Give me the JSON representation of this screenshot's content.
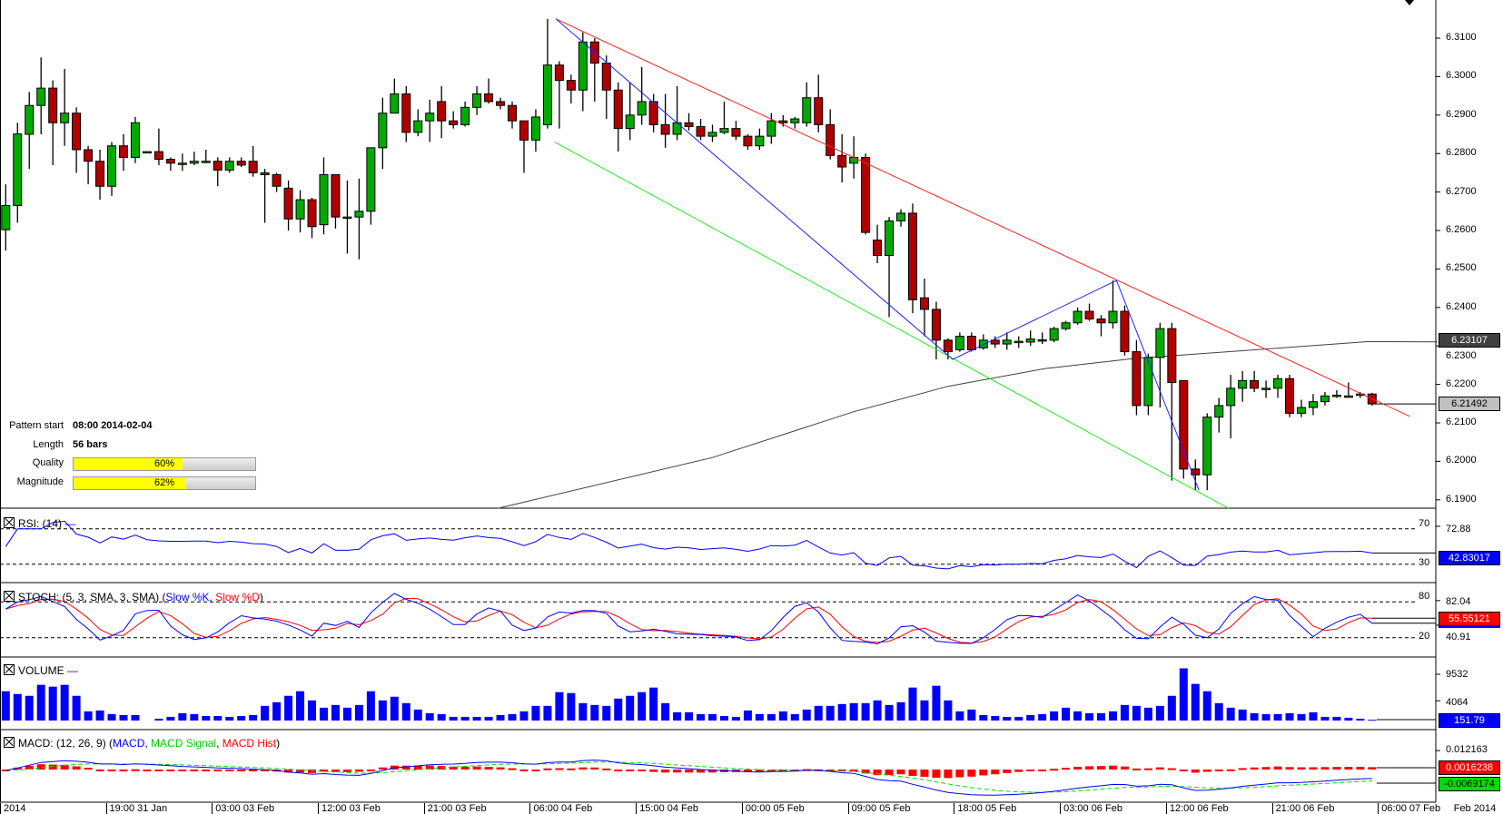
{
  "pattern_info": {
    "pattern_start_label": "Pattern start",
    "pattern_start_value": "08:00 2014-02-04",
    "length_label": "Length",
    "length_value": "56 bars",
    "quality_label": "Quality",
    "quality_value": "60%",
    "quality_fraction": 0.6,
    "magnitude_label": "Magnitude",
    "magnitude_value": "62%",
    "magnitude_fraction": 0.62
  },
  "panels": {
    "rsi": {
      "title": "RSI: (14)",
      "levels": [
        "70",
        "30"
      ],
      "ticks": [
        "72.88"
      ],
      "current": "42.83017"
    },
    "stoch": {
      "title_prefix": "STOCH: (5, 3, SMA, 3, SMA) (",
      "k_label": "Slow %K",
      "sep": ", ",
      "d_label": "Slow %D",
      "title_suffix": ")",
      "levels": [
        "80",
        "20"
      ],
      "ticks": [
        "82.04",
        "40.91"
      ],
      "current": "55.55121"
    },
    "volume": {
      "title": "VOLUME",
      "ticks": [
        "9532",
        "4064"
      ],
      "current": "151.79"
    },
    "macd": {
      "title_prefix": "MACD: (12, 26, 9) (",
      "macd_label": "MACD",
      "sep1": ", ",
      "signal_label": "MACD Signal",
      "sep2": ", ",
      "hist_label": "MACD Hist",
      "title_suffix": ")",
      "ticks": [
        "0.012163"
      ],
      "current_hist": "0.0016238",
      "current_signal": "-0.0069174"
    }
  },
  "price_axis": {
    "ticks": [
      "6.3100",
      "6.3000",
      "6.2900",
      "6.2800",
      "6.2700",
      "6.2600",
      "6.2500",
      "6.2400",
      "6.2300",
      "6.2200",
      "6.2100",
      "6.2000",
      "6.1900"
    ],
    "ma_value": "6.23107",
    "last_value": "6.21492"
  },
  "time_axis": {
    "labels": [
      "2014",
      "19:00 31 Jan",
      "03:00 03 Feb",
      "12:00 03 Feb",
      "21:00 03 Feb",
      "06:00 04 Feb",
      "15:00 04 Feb",
      "00:00 05 Feb",
      "09:00 05 Feb",
      "18:00 05 Feb",
      "03:00 06 Feb",
      "12:00 06 Feb",
      "21:00 06 Feb",
      "06:00 07 Feb",
      "Feb 2014"
    ],
    "bar_index": [
      -0.5,
      8.5,
      17.5,
      26.5,
      35.5,
      44.5,
      53.5,
      62.5,
      71.5,
      80.5,
      89.5,
      98.5,
      107.5,
      116.5,
      122.7
    ]
  },
  "colors": {
    "up": "#00aa00",
    "down": "#b00000",
    "trend_upper": "#ff2020",
    "trend_lower": "#22ee22",
    "zigzag": "#2222ff",
    "ma": "#404040",
    "rsi": "#0000ff",
    "stoch_k": "#0000ff",
    "stoch_d": "#ff0000",
    "volume": "#0000ff",
    "macd": "#0000ff",
    "signal": "#00dd00",
    "hist": "#ff0000",
    "quality_fill": "#ffff00"
  },
  "chart_data": {
    "type": "candlestick",
    "title": "",
    "ylim": [
      6.187,
      6.319
    ],
    "candles_ohlc": [
      [
        6.2602,
        6.272,
        6.2548,
        6.2665
      ],
      [
        6.2665,
        6.288,
        6.262,
        6.2851
      ],
      [
        6.285,
        6.296,
        6.276,
        6.2925
      ],
      [
        6.2925,
        6.305,
        6.285,
        6.297
      ],
      [
        6.297,
        6.299,
        6.277,
        6.288
      ],
      [
        6.288,
        6.302,
        6.282,
        6.2905
      ],
      [
        6.2905,
        6.292,
        6.275,
        6.281
      ],
      [
        6.281,
        6.282,
        6.272,
        6.278
      ],
      [
        6.278,
        6.281,
        6.268,
        6.2715
      ],
      [
        6.2715,
        6.283,
        6.269,
        6.282
      ],
      [
        6.282,
        6.285,
        6.2755,
        6.279
      ],
      [
        6.279,
        6.2895,
        6.2775,
        6.288
      ],
      [
        6.2805,
        6.2805,
        6.2805,
        6.2805
      ],
      [
        6.2805,
        6.2865,
        6.277,
        6.2785
      ],
      [
        6.2785,
        6.279,
        6.2755,
        6.2775
      ],
      [
        6.2775,
        6.28,
        6.2755,
        6.2775
      ],
      [
        6.2775,
        6.2805,
        6.277,
        6.278
      ],
      [
        6.278,
        6.281,
        6.2775,
        6.278
      ],
      [
        6.278,
        6.279,
        6.2715,
        6.2757
      ],
      [
        6.2757,
        6.279,
        6.275,
        6.278
      ],
      [
        6.278,
        6.279,
        6.2765,
        6.277
      ],
      [
        6.278,
        6.282,
        6.274,
        6.275
      ],
      [
        6.275,
        6.276,
        6.262,
        6.2745
      ],
      [
        6.2745,
        6.275,
        6.27,
        6.2715
      ],
      [
        6.271,
        6.273,
        6.26,
        6.263
      ],
      [
        6.263,
        6.2705,
        6.2595,
        6.268
      ],
      [
        6.268,
        6.2685,
        6.258,
        6.261
      ],
      [
        6.2615,
        6.279,
        6.259,
        6.2745
      ],
      [
        6.2745,
        6.2745,
        6.2605,
        6.2635
      ],
      [
        6.2635,
        6.273,
        6.254,
        6.2635
      ],
      [
        6.2635,
        6.2735,
        6.2525,
        6.265
      ],
      [
        6.265,
        6.2815,
        6.2615,
        6.2815
      ],
      [
        6.2815,
        6.2945,
        6.276,
        6.2905
      ],
      [
        6.2905,
        6.2995,
        6.2915,
        6.2955
      ],
      [
        6.2955,
        6.2975,
        6.283,
        6.2855
      ],
      [
        6.2855,
        6.2915,
        6.2845,
        6.2885
      ],
      [
        6.2885,
        6.294,
        6.283,
        6.2905
      ],
      [
        6.2935,
        6.2975,
        6.284,
        6.2885
      ],
      [
        6.2885,
        6.291,
        6.2865,
        6.2875
      ],
      [
        6.2875,
        6.2935,
        6.287,
        6.292
      ],
      [
        6.292,
        6.2975,
        6.29,
        6.2955
      ],
      [
        6.2955,
        6.2995,
        6.293,
        6.2935
      ],
      [
        6.2935,
        6.2945,
        6.2915,
        6.2925
      ],
      [
        6.2925,
        6.2935,
        6.2865,
        6.2885
      ],
      [
        6.2885,
        6.287,
        6.275,
        6.2835
      ],
      [
        6.2835,
        6.2915,
        6.2805,
        6.2895
      ],
      [
        6.2875,
        6.315,
        6.2865,
        6.303
      ],
      [
        6.303,
        6.304,
        6.2865,
        6.299
      ],
      [
        6.299,
        6.3005,
        6.293,
        6.2965
      ],
      [
        6.2965,
        6.3115,
        6.291,
        6.309
      ],
      [
        6.309,
        6.31,
        6.2935,
        6.3035
      ],
      [
        6.3035,
        6.3055,
        6.289,
        6.2965
      ],
      [
        6.2965,
        6.2985,
        6.2805,
        6.2865
      ],
      [
        6.2865,
        6.2985,
        6.2835,
        6.29
      ],
      [
        6.29,
        6.3025,
        6.2875,
        6.2935
      ],
      [
        6.2935,
        6.2955,
        6.2855,
        6.2875
      ],
      [
        6.2875,
        6.2955,
        6.2815,
        6.285
      ],
      [
        6.285,
        6.2975,
        6.2835,
        6.288
      ],
      [
        6.288,
        6.2905,
        6.286,
        6.287
      ],
      [
        6.287,
        6.289,
        6.2835,
        6.2845
      ],
      [
        6.2845,
        6.2875,
        6.283,
        6.2855
      ],
      [
        6.2855,
        6.2935,
        6.285,
        6.2865
      ],
      [
        6.2865,
        6.2885,
        6.2835,
        6.2845
      ],
      [
        6.2845,
        6.285,
        6.281,
        6.282
      ],
      [
        6.282,
        6.2865,
        6.281,
        6.2845
      ],
      [
        6.2845,
        6.2905,
        6.2825,
        6.2885
      ],
      [
        6.2885,
        6.29,
        6.287,
        6.288
      ],
      [
        6.288,
        6.2895,
        6.2865,
        6.289
      ],
      [
        6.288,
        6.2985,
        6.287,
        6.2945
      ],
      [
        6.2945,
        6.3005,
        6.2855,
        6.2875
      ],
      [
        6.2875,
        6.2915,
        6.2785,
        6.2795
      ],
      [
        6.2795,
        6.285,
        6.2725,
        6.2765
      ],
      [
        6.2775,
        6.2845,
        6.2735,
        6.279
      ],
      [
        6.279,
        6.28,
        6.259,
        6.2595
      ],
      [
        6.2575,
        6.2615,
        6.2515,
        6.2535
      ],
      [
        6.2535,
        6.2635,
        6.2375,
        6.2625
      ],
      [
        6.2625,
        6.2655,
        6.261,
        6.2645
      ],
      [
        6.2645,
        6.267,
        6.2385,
        6.242
      ],
      [
        6.2425,
        6.2475,
        6.2325,
        6.2395
      ],
      [
        6.2395,
        6.2415,
        6.2265,
        6.2315
      ],
      [
        6.2315,
        6.232,
        6.2265,
        6.2285
      ],
      [
        6.229,
        6.2335,
        6.2285,
        6.2325
      ],
      [
        6.2325,
        6.2335,
        6.2285,
        6.229
      ],
      [
        6.2295,
        6.233,
        6.229,
        6.2315
      ],
      [
        6.2315,
        6.2325,
        6.2295,
        6.2305
      ],
      [
        6.2305,
        6.2335,
        6.229,
        6.2315
      ],
      [
        6.2312,
        6.2325,
        6.2295,
        6.2312
      ],
      [
        6.231,
        6.234,
        6.23,
        6.2318
      ],
      [
        6.2316,
        6.2335,
        6.2305,
        6.2316
      ],
      [
        6.2315,
        6.235,
        6.231,
        6.2345
      ],
      [
        6.2345,
        6.2365,
        6.234,
        6.236
      ],
      [
        6.236,
        6.24,
        6.2355,
        6.239
      ],
      [
        6.239,
        6.241,
        6.2365,
        6.237
      ],
      [
        6.237,
        6.238,
        6.2325,
        6.236
      ],
      [
        6.236,
        6.247,
        6.2345,
        6.239
      ],
      [
        6.239,
        6.2405,
        6.2275,
        6.2285
      ],
      [
        6.2285,
        6.2315,
        6.212,
        6.2145
      ],
      [
        6.2145,
        6.228,
        6.212,
        6.227
      ],
      [
        6.227,
        6.236,
        6.214,
        6.2345
      ],
      [
        6.2345,
        6.236,
        6.195,
        6.2205
      ],
      [
        6.221,
        6.221,
        6.1955,
        6.198
      ],
      [
        6.198,
        6.2005,
        6.1925,
        6.1965
      ],
      [
        6.1965,
        6.2125,
        6.1925,
        6.2115
      ],
      [
        6.2115,
        6.2165,
        6.2075,
        6.2145
      ],
      [
        6.2145,
        6.2225,
        6.206,
        6.219
      ],
      [
        6.219,
        6.2235,
        6.2155,
        6.221
      ],
      [
        6.221,
        6.2235,
        6.218,
        6.219
      ],
      [
        6.219,
        6.221,
        6.2165,
        6.219
      ],
      [
        6.219,
        6.2225,
        6.2165,
        6.2215
      ],
      [
        6.2215,
        6.2225,
        6.2115,
        6.2125
      ],
      [
        6.2125,
        6.216,
        6.2115,
        6.214
      ],
      [
        6.214,
        6.2175,
        6.212,
        6.2155
      ],
      [
        6.2155,
        6.218,
        6.2145,
        6.217
      ],
      [
        6.2172,
        6.2185,
        6.2165,
        6.2172
      ],
      [
        6.217,
        6.2205,
        6.2165,
        6.217
      ],
      [
        6.2172,
        6.218,
        6.2165,
        6.2175
      ],
      [
        6.2175,
        6.2178,
        6.2145,
        6.21492
      ]
    ],
    "volume": [
      6035,
      5469,
      5092,
      7355,
      6978,
      7355,
      5092,
      1886,
      2075,
      1320,
      1132,
      1132,
      0,
      377,
      754,
      1509,
      1320,
      943,
      943,
      754,
      943,
      1132,
      3018,
      3772,
      5092,
      6035,
      4149,
      2641,
      3206,
      2641,
      3206,
      6035,
      4149,
      4904,
      3583,
      2263,
      1509,
      1320,
      754,
      754,
      754,
      754,
      1132,
      1320,
      1886,
      3018,
      3018,
      5847,
      5658,
      3583,
      3206,
      3018,
      4526,
      5092,
      5847,
      6790,
      3583,
      1697,
      1697,
      1320,
      1320,
      943,
      754,
      2075,
      1320,
      1320,
      1886,
      1320,
      2263,
      3018,
      3018,
      3395,
      3583,
      3583,
      4149,
      3206,
      3772,
      6790,
      4149,
      7167,
      4149,
      1886,
      2263,
      1132,
      943,
      754,
      754,
      1132,
      1320,
      1886,
      2641,
      1886,
      1509,
      1509,
      1886,
      3206,
      3018,
      2641,
      3018,
      5092,
      10750,
      7544,
      6035,
      3583,
      2641,
      2263,
      1509,
      1320,
      1320,
      1509,
      1320,
      1697,
      754,
      754,
      566,
      377,
      152
    ],
    "upper_trendline": [
      [
        46.7,
        6.315
      ],
      [
        119.2,
        6.2117
      ]
    ],
    "lower_trendline": [
      [
        46.6,
        6.283
      ],
      [
        103.8,
        6.1878
      ]
    ],
    "zigzag": [
      [
        46.7,
        6.315
      ],
      [
        80.4,
        6.2265
      ],
      [
        94.3,
        6.247
      ],
      [
        101.3,
        6.1925
      ]
    ],
    "moving_average": [
      [
        41.8,
        6.1878
      ],
      [
        60,
        6.201
      ],
      [
        72,
        6.2129
      ],
      [
        80,
        6.2195
      ],
      [
        88.2,
        6.2241
      ],
      [
        96,
        6.2268
      ],
      [
        104.3,
        6.2286
      ],
      [
        115.6,
        6.2311
      ],
      [
        121.5,
        6.23107
      ]
    ],
    "rsi_levels": [
      70,
      30
    ],
    "stoch_levels": [
      80,
      20
    ],
    "params": {
      "rsi": 14,
      "stoch": [
        5,
        3,
        3
      ],
      "macd": [
        12,
        26,
        9
      ]
    }
  }
}
